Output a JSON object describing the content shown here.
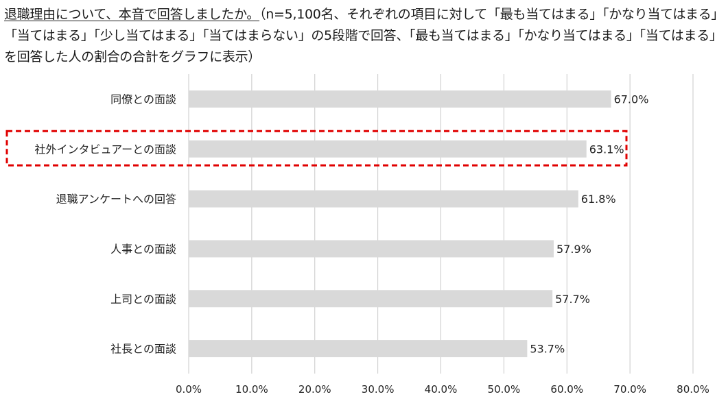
{
  "title": {
    "underlined": "退職理由について、本音で回答しましたか。",
    "rest": "（n=5,100名、それぞれの項目に対して「最も当てはまる」「かなり当てはまる」「当てはまる」「少し当てはまる」「当てはまらない」の5段階で回答、「最も当てはまる」「かなり当てはまる」「当てはまる」を回答した人の割合の合計をグラフに表示）"
  },
  "chart_data": {
    "type": "bar",
    "orientation": "horizontal",
    "categories": [
      "同僚との面談",
      "社外インタビュアーとの面談",
      "退職アンケートへの回答",
      "人事との面談",
      "上司との面談",
      "社長との面談"
    ],
    "values": [
      67.0,
      63.1,
      61.8,
      57.9,
      57.7,
      53.7
    ],
    "value_labels": [
      "67.0%",
      "63.1%",
      "61.8%",
      "57.9%",
      "57.7%",
      "53.7%"
    ],
    "xlim": [
      0,
      80
    ],
    "x_ticks": [
      "0.0%",
      "10.0%",
      "20.0%",
      "30.0%",
      "40.0%",
      "50.0%",
      "60.0%",
      "70.0%",
      "80.0%"
    ],
    "grid": true,
    "highlighted_category": "社外インタビュアーとの面談",
    "colors": {
      "bar": "#d9d9d9",
      "grid": "#c8c8c8",
      "highlight_border": "#e00000",
      "text": "#222222"
    }
  }
}
